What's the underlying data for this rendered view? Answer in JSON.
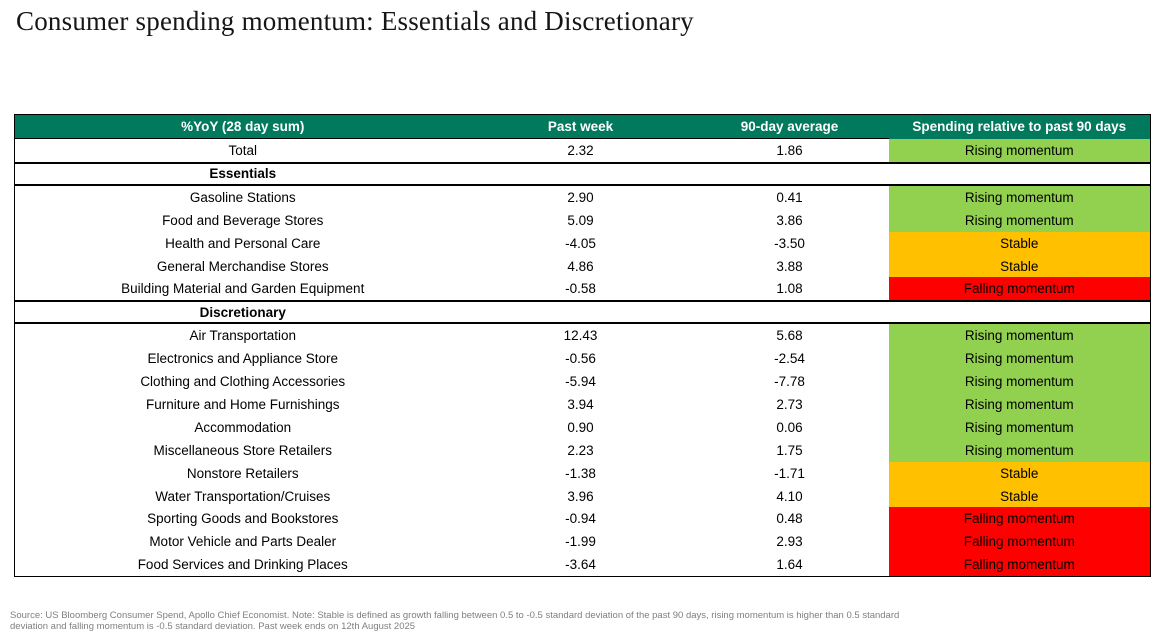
{
  "page": {
    "title": "Consumer spending momentum: Essentials and Discretionary"
  },
  "colors": {
    "header_bg": "#00795D",
    "header_text": "#FFFFFF",
    "rising": "#92D050",
    "stable": "#FFC000",
    "falling": "#FF0000"
  },
  "table": {
    "columns": [
      "%YoY (28 day sum)",
      "Past week",
      "90-day average",
      "Spending relative to past 90 days"
    ],
    "rows": [
      {
        "type": "data",
        "label": "Total",
        "past_week": "2.32",
        "avg_90": "1.86",
        "status": "Rising momentum",
        "status_key": "rising"
      },
      {
        "type": "section",
        "label": "Essentials"
      },
      {
        "type": "data",
        "label": "Gasoline Stations",
        "past_week": "2.90",
        "avg_90": "0.41",
        "status": "Rising momentum",
        "status_key": "rising"
      },
      {
        "type": "data",
        "label": "Food and Beverage Stores",
        "past_week": "5.09",
        "avg_90": "3.86",
        "status": "Rising momentum",
        "status_key": "rising"
      },
      {
        "type": "data",
        "label": "Health and Personal Care",
        "past_week": "-4.05",
        "avg_90": "-3.50",
        "status": "Stable",
        "status_key": "stable"
      },
      {
        "type": "data",
        "label": "General Merchandise Stores",
        "past_week": "4.86",
        "avg_90": "3.88",
        "status": "Stable",
        "status_key": "stable"
      },
      {
        "type": "data",
        "label": "Building Material and Garden Equipment",
        "past_week": "-0.58",
        "avg_90": "1.08",
        "status": "Falling momentum",
        "status_key": "falling"
      },
      {
        "type": "section",
        "label": "Discretionary"
      },
      {
        "type": "data",
        "label": "Air Transportation",
        "past_week": "12.43",
        "avg_90": "5.68",
        "status": "Rising momentum",
        "status_key": "rising"
      },
      {
        "type": "data",
        "label": "Electronics and Appliance Store",
        "past_week": "-0.56",
        "avg_90": "-2.54",
        "status": "Rising momentum",
        "status_key": "rising"
      },
      {
        "type": "data",
        "label": "Clothing and Clothing Accessories",
        "past_week": "-5.94",
        "avg_90": "-7.78",
        "status": "Rising momentum",
        "status_key": "rising"
      },
      {
        "type": "data",
        "label": "Furniture and Home Furnishings",
        "past_week": "3.94",
        "avg_90": "2.73",
        "status": "Rising momentum",
        "status_key": "rising"
      },
      {
        "type": "data",
        "label": "Accommodation",
        "past_week": "0.90",
        "avg_90": "0.06",
        "status": "Rising momentum",
        "status_key": "rising"
      },
      {
        "type": "data",
        "label": "Miscellaneous Store Retailers",
        "past_week": "2.23",
        "avg_90": "1.75",
        "status": "Rising momentum",
        "status_key": "rising"
      },
      {
        "type": "data",
        "label": "Nonstore Retailers",
        "past_week": "-1.38",
        "avg_90": "-1.71",
        "status": "Stable",
        "status_key": "stable"
      },
      {
        "type": "data",
        "label": "Water Transportation/Cruises",
        "past_week": "3.96",
        "avg_90": "4.10",
        "status": "Stable",
        "status_key": "stable"
      },
      {
        "type": "data",
        "label": "Sporting Goods and Bookstores",
        "past_week": "-0.94",
        "avg_90": "0.48",
        "status": "Falling momentum",
        "status_key": "falling"
      },
      {
        "type": "data",
        "label": "Motor Vehicle and Parts Dealer",
        "past_week": "-1.99",
        "avg_90": "2.93",
        "status": "Falling momentum",
        "status_key": "falling"
      },
      {
        "type": "data",
        "label": "Food Services and Drinking Places",
        "past_week": "-3.64",
        "avg_90": "1.64",
        "status": "Falling momentum",
        "status_key": "falling"
      }
    ]
  },
  "footnote": {
    "line1": "Source: US Bloomberg Consumer Spend, Apollo Chief Economist. Note: Stable is defined as growth falling between 0.5 to -0.5 standard deviation of the past 90 days, rising momentum is higher than 0.5 standard",
    "line2": "deviation and falling momentum is -0.5 standard deviation. Past week ends on 12th August 2025"
  }
}
